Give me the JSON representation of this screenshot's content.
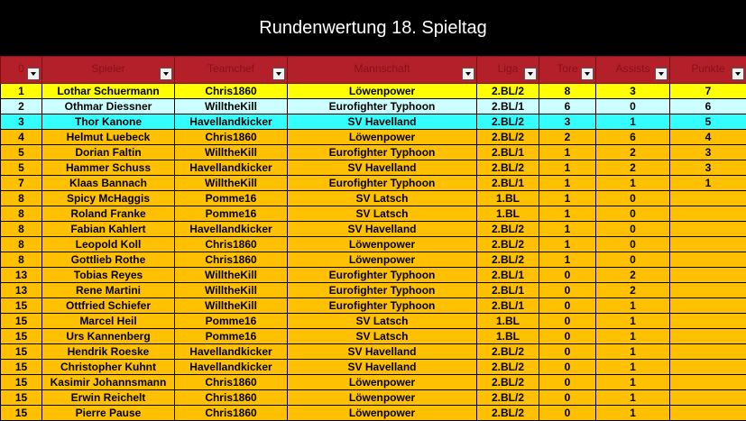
{
  "title": "Rundenwertung 18. Spieltag",
  "headers": [
    "0",
    "Spieler",
    "Teamchef",
    "Mannschaft",
    "Liga",
    "Tore",
    "Assists",
    "Punkte"
  ],
  "rows": [
    {
      "rank": "1",
      "spieler": "Lothar Schuermann",
      "teamchef": "Chris1860",
      "mannschaft": "Löwenpower",
      "liga": "2.BL/2",
      "tore": "8",
      "assists": "3",
      "punkte": "7",
      "style": "yellow"
    },
    {
      "rank": "2",
      "spieler": "Othmar Diessner",
      "teamchef": "WilltheKill",
      "mannschaft": "Eurofighter Typhoon",
      "liga": "2.BL/1",
      "tore": "6",
      "assists": "0",
      "punkte": "6",
      "style": "lightcyan"
    },
    {
      "rank": "3",
      "spieler": "Thor Kanone",
      "teamchef": "Havellandkicker",
      "mannschaft": "SV Havelland",
      "liga": "2.BL/2",
      "tore": "3",
      "assists": "1",
      "punkte": "5",
      "style": "cyan"
    },
    {
      "rank": "4",
      "spieler": "Helmut Luebeck",
      "teamchef": "Chris1860",
      "mannschaft": "Löwenpower",
      "liga": "2.BL/2",
      "tore": "2",
      "assists": "6",
      "punkte": "4",
      "style": "orange"
    },
    {
      "rank": "5",
      "spieler": "Dorian Faltin",
      "teamchef": "WilltheKill",
      "mannschaft": "Eurofighter Typhoon",
      "liga": "2.BL/1",
      "tore": "1",
      "assists": "2",
      "punkte": "3",
      "style": "orange"
    },
    {
      "rank": "5",
      "spieler": "Hammer Schuss",
      "teamchef": "Havellandkicker",
      "mannschaft": "SV Havelland",
      "liga": "2.BL/2",
      "tore": "1",
      "assists": "2",
      "punkte": "3",
      "style": "orange"
    },
    {
      "rank": "7",
      "spieler": "Klaas Bannach",
      "teamchef": "WilltheKill",
      "mannschaft": "Eurofighter Typhoon",
      "liga": "2.BL/1",
      "tore": "1",
      "assists": "1",
      "punkte": "1",
      "style": "orange"
    },
    {
      "rank": "8",
      "spieler": "Spicy McHaggis",
      "teamchef": "Pomme16",
      "mannschaft": "SV Latsch",
      "liga": "1.BL",
      "tore": "1",
      "assists": "0",
      "punkte": "",
      "style": "orange"
    },
    {
      "rank": "8",
      "spieler": "Roland Franke",
      "teamchef": "Pomme16",
      "mannschaft": "SV Latsch",
      "liga": "1.BL",
      "tore": "1",
      "assists": "0",
      "punkte": "",
      "style": "orange"
    },
    {
      "rank": "8",
      "spieler": "Fabian Kahlert",
      "teamchef": "Havellandkicker",
      "mannschaft": "SV Havelland",
      "liga": "2.BL/2",
      "tore": "1",
      "assists": "0",
      "punkte": "",
      "style": "orange"
    },
    {
      "rank": "8",
      "spieler": "Leopold Koll",
      "teamchef": "Chris1860",
      "mannschaft": "Löwenpower",
      "liga": "2.BL/2",
      "tore": "1",
      "assists": "0",
      "punkte": "",
      "style": "orange"
    },
    {
      "rank": "8",
      "spieler": "Gottlieb Rothe",
      "teamchef": "Chris1860",
      "mannschaft": "Löwenpower",
      "liga": "2.BL/2",
      "tore": "1",
      "assists": "0",
      "punkte": "",
      "style": "orange"
    },
    {
      "rank": "13",
      "spieler": "Tobias Reyes",
      "teamchef": "WilltheKill",
      "mannschaft": "Eurofighter Typhoon",
      "liga": "2.BL/1",
      "tore": "0",
      "assists": "2",
      "punkte": "",
      "style": "orange"
    },
    {
      "rank": "13",
      "spieler": "Rene Martini",
      "teamchef": "WilltheKill",
      "mannschaft": "Eurofighter Typhoon",
      "liga": "2.BL/1",
      "tore": "0",
      "assists": "2",
      "punkte": "",
      "style": "orange"
    },
    {
      "rank": "15",
      "spieler": "Ottfried Schiefer",
      "teamchef": "WilltheKill",
      "mannschaft": "Eurofighter Typhoon",
      "liga": "2.BL/1",
      "tore": "0",
      "assists": "1",
      "punkte": "",
      "style": "orange"
    },
    {
      "rank": "15",
      "spieler": "Marcel Heil",
      "teamchef": "Pomme16",
      "mannschaft": "SV Latsch",
      "liga": "1.BL",
      "tore": "0",
      "assists": "1",
      "punkte": "",
      "style": "orange"
    },
    {
      "rank": "15",
      "spieler": "Urs Kannenberg",
      "teamchef": "Pomme16",
      "mannschaft": "SV Latsch",
      "liga": "1.BL",
      "tore": "0",
      "assists": "1",
      "punkte": "",
      "style": "orange"
    },
    {
      "rank": "15",
      "spieler": "Hendrik Roeske",
      "teamchef": "Havellandkicker",
      "mannschaft": "SV Havelland",
      "liga": "2.BL/2",
      "tore": "0",
      "assists": "1",
      "punkte": "",
      "style": "orange"
    },
    {
      "rank": "15",
      "spieler": "Christopher Kuhnt",
      "teamchef": "Havellandkicker",
      "mannschaft": "SV Havelland",
      "liga": "2.BL/2",
      "tore": "0",
      "assists": "1",
      "punkte": "",
      "style": "orange"
    },
    {
      "rank": "15",
      "spieler": "Kasimir Johannsmann",
      "teamchef": "Chris1860",
      "mannschaft": "Löwenpower",
      "liga": "2.BL/2",
      "tore": "0",
      "assists": "1",
      "punkte": "",
      "style": "orange"
    },
    {
      "rank": "15",
      "spieler": "Erwin Reichelt",
      "teamchef": "Chris1860",
      "mannschaft": "Löwenpower",
      "liga": "2.BL/2",
      "tore": "0",
      "assists": "1",
      "punkte": "",
      "style": "orange"
    },
    {
      "rank": "15",
      "spieler": "Pierre Pause",
      "teamchef": "Chris1860",
      "mannschaft": "Löwenpower",
      "liga": "2.BL/2",
      "tore": "0",
      "assists": "1",
      "punkte": "",
      "style": "orange"
    }
  ],
  "colors": {
    "header": "#b3202a",
    "yellow": "#ffff00",
    "lightcyan": "#ccffff",
    "cyan": "#33ffff",
    "orange": "#ffc000"
  }
}
